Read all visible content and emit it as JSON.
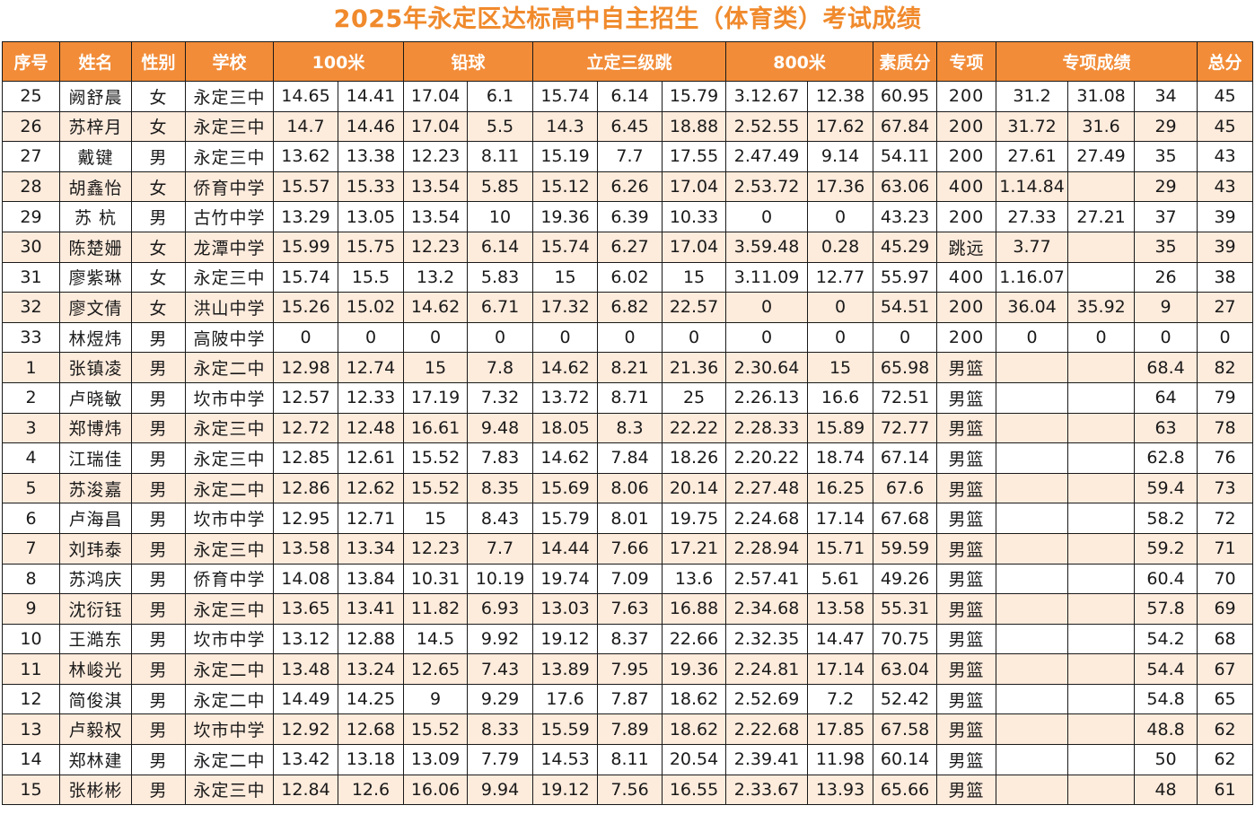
{
  "title": "2025年永定区达标高中自主招生（体育类）考试成绩",
  "colors": {
    "title": "#f08a2c",
    "header_bg": "#f28c38",
    "header_text": "#ffffff",
    "row_alt": "#fdebdc"
  },
  "headers": [
    {
      "label": "序号",
      "span": 1
    },
    {
      "label": "姓名",
      "span": 1
    },
    {
      "label": "性别",
      "span": 1
    },
    {
      "label": "学校",
      "span": 1
    },
    {
      "label": "100米",
      "span": 2
    },
    {
      "label": "铅球",
      "span": 2
    },
    {
      "label": "立定三级跳",
      "span": 3
    },
    {
      "label": "800米",
      "span": 2
    },
    {
      "label": "素质分",
      "span": 1
    },
    {
      "label": "专项",
      "span": 1
    },
    {
      "label": "专项成绩",
      "span": 3
    },
    {
      "label": "总分",
      "span": 1
    }
  ],
  "rows": [
    [
      "25",
      "阙舒晨",
      "女",
      "永定三中",
      "14.65",
      "14.41",
      "17.04",
      "6.1",
      "15.74",
      "6.14",
      "15.79",
      "3.12.67",
      "12.38",
      "60.95",
      "200",
      "31.2",
      "31.08",
      "34",
      "45"
    ],
    [
      "26",
      "苏梓月",
      "女",
      "永定三中",
      "14.7",
      "14.46",
      "17.04",
      "5.5",
      "14.3",
      "6.45",
      "18.88",
      "2.52.55",
      "17.62",
      "67.84",
      "200",
      "31.72",
      "31.6",
      "29",
      "45"
    ],
    [
      "27",
      "戴键",
      "男",
      "永定三中",
      "13.62",
      "13.38",
      "12.23",
      "8.11",
      "15.19",
      "7.7",
      "17.55",
      "2.47.49",
      "9.14",
      "54.11",
      "200",
      "27.61",
      "27.49",
      "35",
      "43"
    ],
    [
      "28",
      "胡鑫怡",
      "女",
      "侨育中学",
      "15.57",
      "15.33",
      "13.54",
      "5.85",
      "15.12",
      "6.26",
      "17.04",
      "2.53.72",
      "17.36",
      "63.06",
      "400",
      "1.14.84",
      "",
      "29",
      "43"
    ],
    [
      "29",
      "苏 杭",
      "男",
      "古竹中学",
      "13.29",
      "13.05",
      "13.54",
      "10",
      "19.36",
      "6.39",
      "10.33",
      "0",
      "0",
      "43.23",
      "200",
      "27.33",
      "27.21",
      "37",
      "39"
    ],
    [
      "30",
      "陈楚姗",
      "女",
      "龙潭中学",
      "15.99",
      "15.75",
      "12.23",
      "6.14",
      "15.74",
      "6.27",
      "17.04",
      "3.59.48",
      "0.28",
      "45.29",
      "跳远",
      "3.77",
      "",
      "35",
      "39"
    ],
    [
      "31",
      "廖紫琳",
      "女",
      "永定三中",
      "15.74",
      "15.5",
      "13.2",
      "5.83",
      "15",
      "6.02",
      "15",
      "3.11.09",
      "12.77",
      "55.97",
      "400",
      "1.16.07",
      "",
      "26",
      "38"
    ],
    [
      "32",
      "廖文倩",
      "女",
      "洪山中学",
      "15.26",
      "15.02",
      "14.62",
      "6.71",
      "17.32",
      "6.82",
      "22.57",
      "0",
      "0",
      "54.51",
      "200",
      "36.04",
      "35.92",
      "9",
      "27"
    ],
    [
      "33",
      "林煜炜",
      "男",
      "高陂中学",
      "0",
      "0",
      "0",
      "0",
      "0",
      "0",
      "0",
      "0",
      "0",
      "0",
      "200",
      "0",
      "0",
      "0",
      "0"
    ],
    [
      "1",
      "张镇凌",
      "男",
      "永定二中",
      "12.98",
      "12.74",
      "15",
      "7.8",
      "14.62",
      "8.21",
      "21.36",
      "2.30.64",
      "15",
      "65.98",
      "男篮",
      "",
      "",
      "68.4",
      "82"
    ],
    [
      "2",
      "卢晓敏",
      "男",
      "坎市中学",
      "12.57",
      "12.33",
      "17.19",
      "7.32",
      "13.72",
      "8.71",
      "25",
      "2.26.13",
      "16.6",
      "72.51",
      "男篮",
      "",
      "",
      "64",
      "79"
    ],
    [
      "3",
      "郑博炜",
      "男",
      "永定三中",
      "12.72",
      "12.48",
      "16.61",
      "9.48",
      "18.05",
      "8.3",
      "22.22",
      "2.28.33",
      "15.89",
      "72.77",
      "男篮",
      "",
      "",
      "63",
      "78"
    ],
    [
      "4",
      "江瑞佳",
      "男",
      "永定三中",
      "12.85",
      "12.61",
      "15.52",
      "7.83",
      "14.62",
      "7.84",
      "18.26",
      "2.20.22",
      "18.74",
      "67.14",
      "男篮",
      "",
      "",
      "62.8",
      "76"
    ],
    [
      "5",
      "苏浚嘉",
      "男",
      "永定二中",
      "12.86",
      "12.62",
      "15.52",
      "8.35",
      "15.69",
      "8.06",
      "20.14",
      "2.27.48",
      "16.25",
      "67.6",
      "男篮",
      "",
      "",
      "59.4",
      "73"
    ],
    [
      "6",
      "卢海昌",
      "男",
      "坎市中学",
      "12.95",
      "12.71",
      "15",
      "8.43",
      "15.79",
      "8.01",
      "19.75",
      "2.24.68",
      "17.14",
      "67.68",
      "男篮",
      "",
      "",
      "58.2",
      "72"
    ],
    [
      "7",
      "刘玮泰",
      "男",
      "永定三中",
      "13.58",
      "13.34",
      "12.23",
      "7.7",
      "14.44",
      "7.66",
      "17.21",
      "2.28.94",
      "15.71",
      "59.59",
      "男篮",
      "",
      "",
      "59.2",
      "71"
    ],
    [
      "8",
      "苏鸿庆",
      "男",
      "侨育中学",
      "14.08",
      "13.84",
      "10.31",
      "10.19",
      "19.74",
      "7.09",
      "13.6",
      "2.57.41",
      "5.61",
      "49.26",
      "男篮",
      "",
      "",
      "60.4",
      "70"
    ],
    [
      "9",
      "沈衍钰",
      "男",
      "永定三中",
      "13.65",
      "13.41",
      "11.82",
      "6.93",
      "13.03",
      "7.63",
      "16.88",
      "2.34.68",
      "13.58",
      "55.31",
      "男篮",
      "",
      "",
      "57.8",
      "69"
    ],
    [
      "10",
      "王澔东",
      "男",
      "坎市中学",
      "13.12",
      "12.88",
      "14.5",
      "9.92",
      "19.12",
      "8.37",
      "22.66",
      "2.32.35",
      "14.47",
      "70.75",
      "男篮",
      "",
      "",
      "54.2",
      "68"
    ],
    [
      "11",
      "林峻光",
      "男",
      "永定二中",
      "13.48",
      "13.24",
      "12.65",
      "7.43",
      "13.89",
      "7.95",
      "19.36",
      "2.24.81",
      "17.14",
      "63.04",
      "男篮",
      "",
      "",
      "54.4",
      "67"
    ],
    [
      "12",
      "简俊淇",
      "男",
      "永定二中",
      "14.49",
      "14.25",
      "9",
      "9.29",
      "17.6",
      "7.87",
      "18.62",
      "2.52.69",
      "7.2",
      "52.42",
      "男篮",
      "",
      "",
      "54.8",
      "65"
    ],
    [
      "13",
      "卢毅权",
      "男",
      "坎市中学",
      "12.92",
      "12.68",
      "15.52",
      "8.33",
      "15.59",
      "7.89",
      "18.62",
      "2.22.68",
      "17.85",
      "67.58",
      "男篮",
      "",
      "",
      "48.8",
      "62"
    ],
    [
      "14",
      "郑林建",
      "男",
      "永定二中",
      "13.42",
      "13.18",
      "13.09",
      "7.79",
      "14.53",
      "8.11",
      "20.54",
      "2.39.41",
      "11.98",
      "60.14",
      "男篮",
      "",
      "",
      "50",
      "62"
    ],
    [
      "15",
      "张彬彬",
      "男",
      "永定三中",
      "12.84",
      "12.6",
      "16.06",
      "9.94",
      "19.12",
      "7.56",
      "16.55",
      "2.33.67",
      "13.93",
      "65.66",
      "男篮",
      "",
      "",
      "48",
      "61"
    ]
  ]
}
